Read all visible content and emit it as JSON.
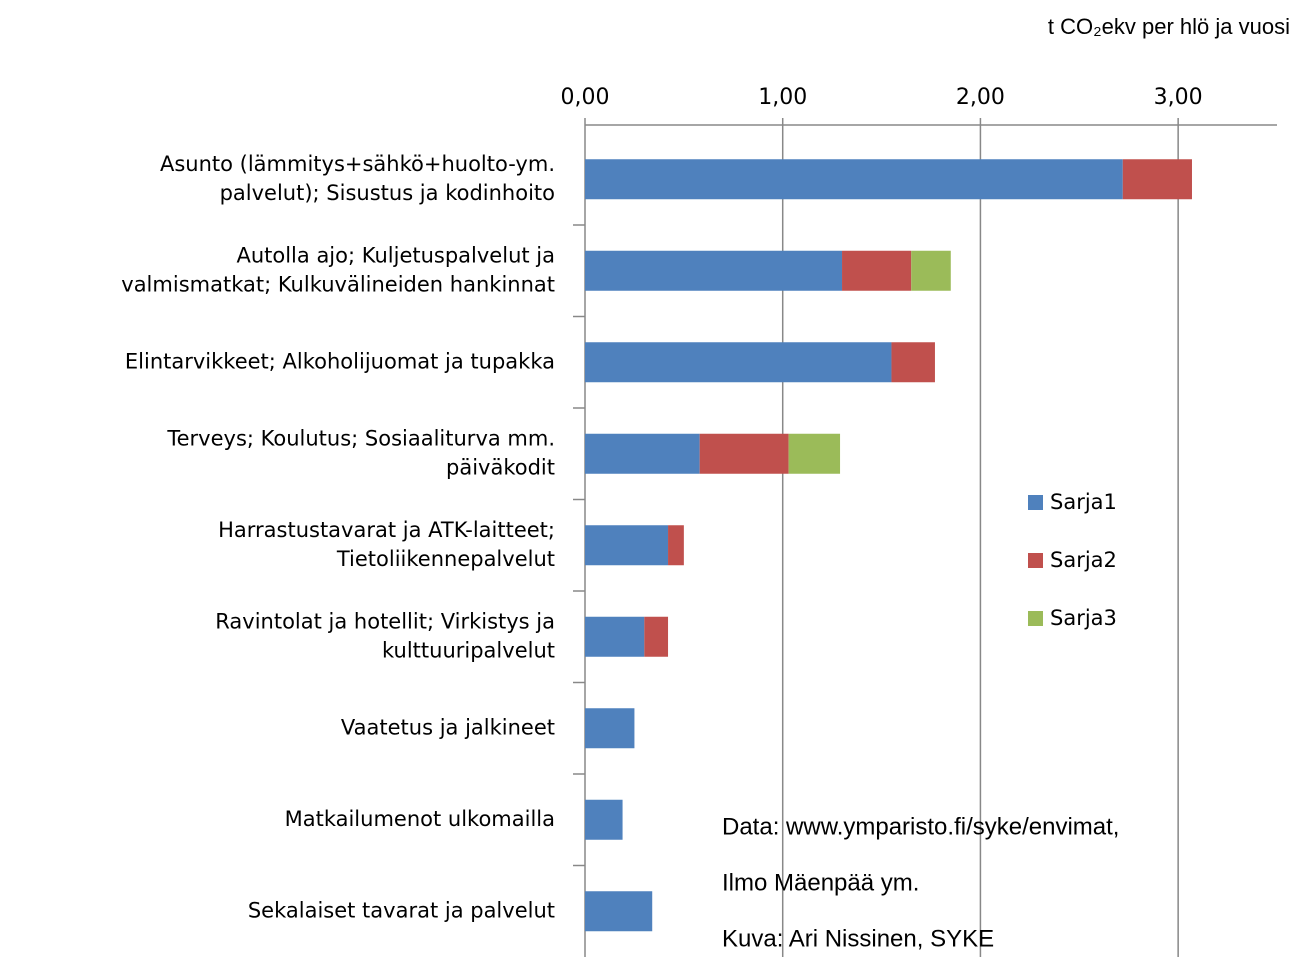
{
  "chart_data": {
    "type": "stacked-bar-horizontal",
    "axis_title": "t CO₂ekv per hlö ja vuosi",
    "categories": [
      "Asunto (lämmitys+sähkö+huolto-ym.\npalvelut); Sisustus  ja kodinhoito",
      "Autolla ajo; Kuljetuspalvelut ja\nvalmismatkat;  Kulkuvälineiden hankinnat",
      "Elintarvikkeet; Alkoholijuomat ja tupakka",
      "Terveys; Koulutus; Sosiaaliturva mm.\npäiväkodit",
      "Harrastustavarat ja ATK-laitteet;\nTietoliikennepalvelut",
      "Ravintolat ja hotellit; Virkistys ja\nkulttuuripalvelut",
      "Vaatetus ja jalkineet",
      "Matkailumenot  ulkomailla",
      "Sekalaiset tavarat ja palvelut"
    ],
    "series": [
      {
        "name": "Sarja1",
        "color": "#4f81bd",
        "values": [
          2.72,
          1.3,
          1.55,
          0.58,
          0.42,
          0.3,
          0.25,
          0.19,
          0.34
        ]
      },
      {
        "name": "Sarja2",
        "color": "#c0504d",
        "values": [
          0.35,
          0.35,
          0.22,
          0.45,
          0.08,
          0.12,
          0,
          0,
          0
        ]
      },
      {
        "name": "Sarja3",
        "color": "#9bbb59",
        "values": [
          0,
          0.2,
          0,
          0.26,
          0,
          0,
          0,
          0,
          0
        ]
      }
    ],
    "xlim": [
      0,
      3.5
    ],
    "xticks": [
      {
        "value": 0,
        "label": "0,00"
      },
      {
        "value": 1,
        "label": "1,00"
      },
      {
        "value": 2,
        "label": "2,00"
      },
      {
        "value": 3,
        "label": "3,00"
      }
    ],
    "grid": true,
    "legend": "right",
    "annotations": [
      "Data: www.ymparisto.fi/syke/envimat,",
      "Ilmo Mäenpää ym.",
      "Kuva: Ari Nissinen, SYKE"
    ]
  }
}
